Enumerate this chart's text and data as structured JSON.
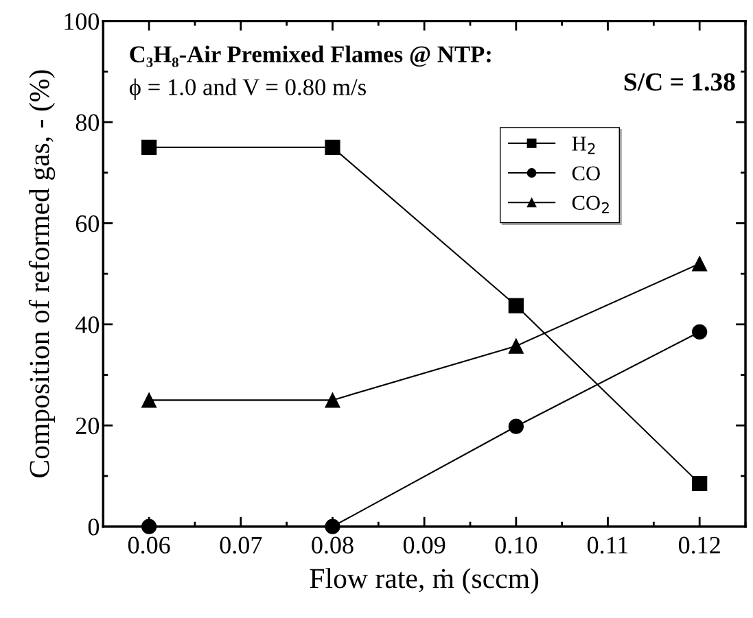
{
  "chart_data": {
    "type": "line",
    "xlabel": "Flow rate, ṁ (sccm)",
    "ylabel": "Composition of reformed gas, - (%)",
    "annotations": [
      "C₃H₈-Air Premixed Flames @ NTP:",
      "ϕ = 1.0 and V = 0.80 m/s",
      "S/C = 1.38"
    ],
    "x": [
      0.06,
      0.08,
      0.1,
      0.12
    ],
    "series": [
      {
        "name": "H$_{2}$",
        "color": "#000000",
        "marker": "square",
        "values": [
          75,
          75,
          43.7,
          8.5
        ]
      },
      {
        "name": "CO",
        "color": "#000000",
        "marker": "circle",
        "values": [
          0,
          0,
          19.8,
          38.5
        ]
      },
      {
        "name": "CO$_{2}$",
        "color": "#000000",
        "marker": "triangle",
        "values": [
          25,
          25,
          35.7,
          52
        ]
      }
    ],
    "xlim": [
      0.055,
      0.125
    ],
    "xticks": [
      0.06,
      0.07,
      0.08,
      0.09,
      {
        "value": 0.1,
        "label": "0.10"
      },
      0.11,
      0.12
    ],
    "ylim": [
      0,
      100
    ],
    "yticks": [
      0,
      20,
      40,
      60,
      80,
      100
    ],
    "legend": "top right",
    "grid": false,
    "line_style": "solid"
  }
}
